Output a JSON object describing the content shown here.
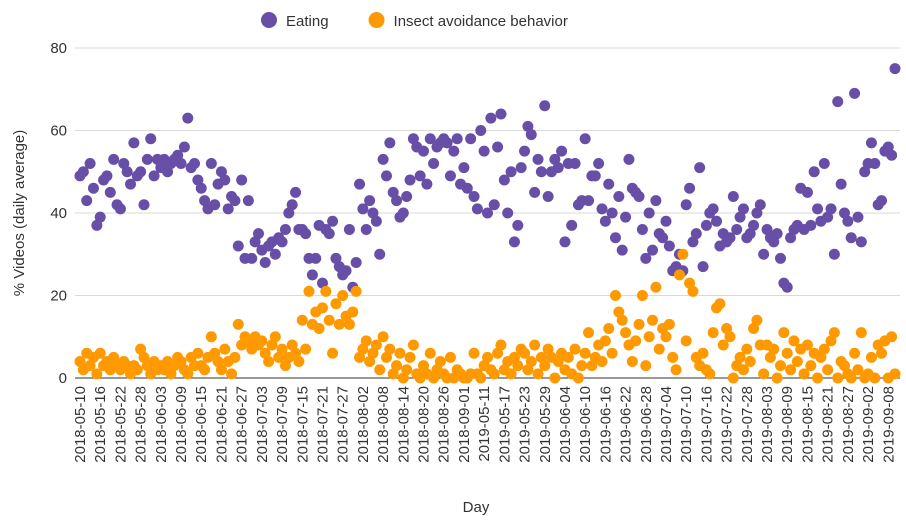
{
  "chart_data": {
    "type": "scatter",
    "x_label": "Day",
    "y_label": "% Videos (daily average)",
    "legend": "top",
    "grid": true,
    "ylim": [
      0,
      80
    ],
    "yticks": [
      0,
      20,
      40,
      60,
      80
    ],
    "categories": [
      "2018-05-10",
      null,
      null,
      null,
      null,
      null,
      "2018-05-16",
      null,
      null,
      null,
      null,
      null,
      "2018-05-22",
      null,
      null,
      null,
      null,
      null,
      "2018-05-28",
      null,
      null,
      null,
      null,
      null,
      "2018-06-03",
      null,
      null,
      null,
      null,
      null,
      "2018-06-09",
      null,
      null,
      null,
      null,
      null,
      "2018-06-15",
      null,
      null,
      null,
      null,
      null,
      "2018-06-21",
      null,
      null,
      null,
      null,
      null,
      "2018-06-27",
      null,
      null,
      null,
      null,
      null,
      "2018-07-03",
      null,
      null,
      null,
      null,
      null,
      "2018-07-09",
      null,
      null,
      null,
      null,
      null,
      "2018-07-15",
      null,
      null,
      null,
      null,
      null,
      "2018-07-21",
      null,
      null,
      null,
      null,
      null,
      "2018-07-27",
      null,
      null,
      null,
      null,
      null,
      "2018-08-02",
      null,
      null,
      null,
      null,
      null,
      "2018-08-08",
      null,
      null,
      null,
      null,
      null,
      "2018-08-14",
      null,
      null,
      null,
      null,
      null,
      "2018-08-20",
      null,
      null,
      null,
      null,
      null,
      "2018-08-26",
      null,
      null,
      null,
      null,
      null,
      "2018-09-01",
      null,
      null,
      null,
      null,
      null,
      "2019-05-11",
      null,
      null,
      null,
      null,
      null,
      "2019-05-17",
      null,
      null,
      null,
      null,
      null,
      "2019-05-23",
      null,
      null,
      null,
      null,
      null,
      "2019-05-29",
      null,
      null,
      null,
      null,
      null,
      "2019-06-04",
      null,
      null,
      null,
      null,
      null,
      "2019-06-10",
      null,
      null,
      null,
      null,
      null,
      "2019-06-16",
      null,
      null,
      null,
      null,
      null,
      "2019-06-22",
      null,
      null,
      null,
      null,
      null,
      "2019-06-28",
      null,
      null,
      null,
      null,
      null,
      "2019-07-04",
      null,
      null,
      null,
      null,
      null,
      "2019-07-10",
      null,
      null,
      null,
      null,
      null,
      "2019-07-16",
      null,
      null,
      null,
      null,
      null,
      "2019-07-22",
      null,
      null,
      null,
      null,
      null,
      "2019-07-28",
      null,
      null,
      null,
      null,
      null,
      "2019-08-03",
      null,
      null,
      null,
      null,
      null,
      "2019-08-09",
      null,
      null,
      null,
      null,
      null,
      "2019-08-15",
      null,
      null,
      null,
      null,
      null,
      "2019-08-21",
      null,
      null,
      null,
      null,
      null,
      "2019-08-27",
      null,
      null,
      null,
      null,
      null,
      "2019-09-02",
      null,
      null,
      null,
      null,
      null,
      "2019-09-08",
      null,
      null
    ],
    "series": [
      {
        "name": "Eating",
        "color": "#674ea7",
        "values": [
          49,
          50,
          43,
          52,
          46,
          37,
          39,
          48,
          49,
          45,
          53,
          42,
          41,
          52,
          50,
          47,
          57,
          49,
          50,
          42,
          53,
          58,
          49,
          53,
          51,
          53,
          50,
          52,
          53,
          54,
          52,
          56,
          63,
          51,
          52,
          48,
          46,
          43,
          41,
          52,
          42,
          47,
          50,
          48,
          41,
          44,
          43,
          32,
          48,
          29,
          43,
          29,
          33,
          35,
          31,
          28,
          32,
          33,
          30,
          34,
          33,
          36,
          40,
          42,
          45,
          36,
          36,
          35,
          29,
          25,
          29,
          37,
          23,
          36,
          35,
          38,
          29,
          27,
          25,
          26,
          36,
          22,
          28,
          47,
          41,
          36,
          43,
          40,
          38,
          30,
          53,
          49,
          57,
          45,
          43,
          39,
          40,
          44,
          48,
          58,
          56,
          49,
          55,
          47,
          58,
          52,
          56,
          57,
          58,
          57,
          49,
          55,
          58,
          47,
          51,
          46,
          58,
          44,
          41,
          60,
          55,
          40,
          63,
          42,
          56,
          64,
          48,
          40,
          50,
          33,
          37,
          51,
          55,
          61,
          59,
          45,
          53,
          50,
          66,
          44,
          50,
          53,
          51,
          55,
          33,
          52,
          37,
          52,
          42,
          43,
          58,
          43,
          49,
          49,
          52,
          41,
          38,
          47,
          40,
          34,
          44,
          31,
          39,
          53,
          46,
          45,
          44,
          36,
          29,
          40,
          31,
          43,
          35,
          34,
          38,
          32,
          26,
          27,
          30,
          26,
          42,
          46,
          33,
          35,
          51,
          27,
          37,
          40,
          41,
          38,
          32,
          35,
          33,
          34,
          44,
          36,
          39,
          41,
          34,
          35,
          37,
          40,
          42,
          30,
          36,
          34,
          33,
          35,
          29,
          23,
          22,
          34,
          36,
          37,
          46,
          36,
          45,
          37,
          50,
          41,
          38,
          52,
          39,
          41,
          30,
          67,
          47,
          40,
          38,
          34,
          69,
          39,
          33,
          50,
          52,
          57,
          52,
          42,
          43,
          55,
          56,
          54,
          75
        ]
      },
      {
        "name": "Insect avoidance behavior",
        "color": "#ff9900",
        "values": [
          4,
          2,
          6,
          3,
          5,
          1,
          6,
          3,
          4,
          2,
          5,
          3,
          2,
          4,
          3,
          1,
          3,
          2,
          7,
          5,
          3,
          1,
          4,
          2,
          3,
          2,
          4,
          1,
          3,
          5,
          4,
          2,
          1,
          5,
          3,
          6,
          3,
          2,
          5,
          10,
          6,
          4,
          2,
          7,
          4,
          1,
          5,
          13,
          8,
          10,
          9,
          7,
          10,
          8,
          9,
          6,
          4,
          8,
          10,
          5,
          7,
          3,
          5,
          8,
          6,
          4,
          14,
          7,
          21,
          13,
          16,
          12,
          17,
          21,
          14,
          6,
          18,
          13,
          20,
          15,
          13,
          16,
          21,
          5,
          7,
          9,
          4,
          6,
          8,
          2,
          10,
          5,
          7,
          1,
          3,
          6,
          0,
          2,
          5,
          8,
          1,
          0,
          3,
          1,
          6,
          0,
          2,
          4,
          1,
          0,
          5,
          0,
          2,
          1,
          0,
          0,
          1,
          6,
          1,
          0,
          3,
          5,
          2,
          1,
          6,
          8,
          2,
          4,
          1,
          5,
          3,
          7,
          6,
          2,
          4,
          8,
          1,
          5,
          3,
          7,
          5,
          0,
          4,
          6,
          2,
          5,
          1,
          7,
          0,
          3,
          6,
          11,
          3,
          5,
          8,
          4,
          9,
          12,
          6,
          20,
          16,
          14,
          11,
          8,
          4,
          9,
          13,
          20,
          3,
          10,
          14,
          22,
          7,
          12,
          10,
          13,
          5,
          2,
          25,
          30,
          9,
          23,
          21,
          5,
          3,
          6,
          2,
          1,
          11,
          17,
          18,
          8,
          12,
          10,
          0,
          3,
          5,
          2,
          7,
          4,
          12,
          14,
          8,
          1,
          8,
          5,
          7,
          0,
          3,
          11,
          6,
          2,
          9,
          4,
          7,
          1,
          8,
          3,
          6,
          0,
          5,
          7,
          2,
          9,
          11,
          0,
          4,
          3,
          1,
          0,
          6,
          2,
          11,
          0,
          1,
          5,
          0,
          8,
          6,
          9,
          0,
          10,
          1
        ]
      }
    ]
  }
}
